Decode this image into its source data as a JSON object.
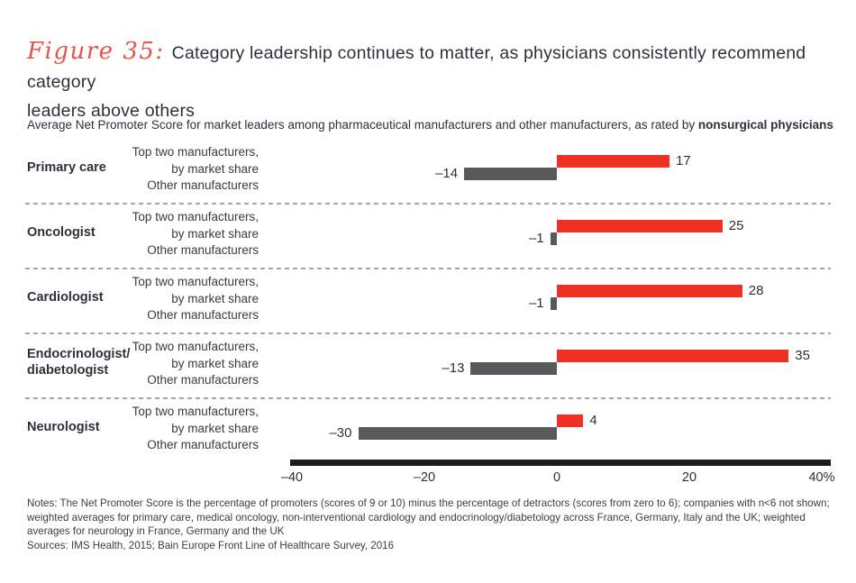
{
  "figure": {
    "label": "Figure 35:",
    "title": "Category leadership continues to matter, as physicians consistently recommend category leaders above others",
    "title_display": "Category leadership continues to matter, as physicians consistently recommend category\nleaders above others"
  },
  "subtitle": {
    "regular": "Average Net Promoter Score for market leaders among pharmaceutical manufacturers and other manufacturers, as rated by ",
    "bold": "nonsurgical physicians"
  },
  "chart_data": {
    "type": "bar",
    "orientation": "horizontal",
    "title": "Average Net Promoter Score for market leaders among pharmaceutical manufacturers and other manufacturers, as rated by nonsurgical physicians",
    "categories": [
      "Primary care",
      "Oncologist",
      "Cardiologist",
      "Endocrinologist/diabetologist",
      "Neurologist"
    ],
    "categories_display": [
      "Primary care",
      "Oncologist",
      "Cardiologist",
      "Endocrinologist/\ndiabetologist",
      "Neurologist"
    ],
    "series": [
      {
        "name": "Top two manufacturers, by market share",
        "label_lines": "Top two manufacturers,\nby market share",
        "color": "#ee3124",
        "values": [
          17,
          25,
          28,
          35,
          4
        ]
      },
      {
        "name": "Other manufacturers",
        "label_lines": "Other manufacturers",
        "color": "#58595b",
        "values": [
          -14,
          -1,
          -1,
          -13,
          -30
        ]
      }
    ],
    "xlabel": "",
    "ylabel": "",
    "xlim": [
      -40,
      40
    ],
    "x_ticks": [
      -40,
      -20,
      0,
      20,
      40
    ],
    "x_tick_labels": [
      "–40",
      "–20",
      "0",
      "20",
      "40%"
    ],
    "grid": false,
    "legend_position": "per-row labels",
    "value_labels_shown": true
  },
  "notes": "Notes: The Net Promoter Score is the percentage of promoters (scores of 9 or 10) minus the percentage of detractors (scores from zero to 6); companies with n<6 not shown;\nweighted averages for primary care, medical oncology, non-interventional cardiology and endocrinology/diabetology across France, Germany, Italy and the UK; weighted\naverages for neurology in France, Germany and the UK",
  "sources": "Sources: IMS Health, 2015; Bain Europe Front Line of Healthcare Survey, 2016",
  "colors": {
    "accent_red": "#ee3124",
    "bar_gray": "#58595b",
    "axis_black": "#1d1d1b",
    "separator_gray": "#a4a6a9",
    "figure_label_red": "#e6544a",
    "text_dark": "#2f3038"
  }
}
